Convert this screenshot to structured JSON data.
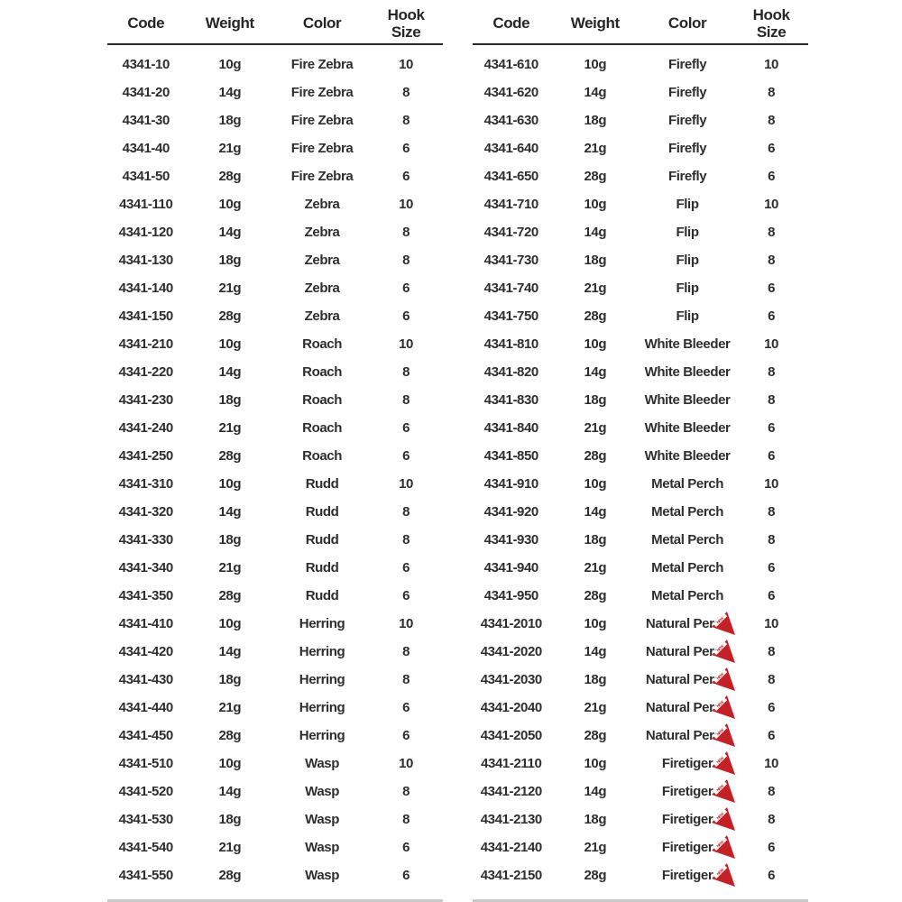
{
  "badge": {
    "label": "NEW",
    "color": "#c42127"
  },
  "tables": [
    {
      "headers": {
        "code": "Code",
        "weight": "Weight",
        "color": "Color",
        "hook": "Hook Size"
      },
      "rows": [
        {
          "code": "4341-10",
          "weight": "10g",
          "color": "Fire Zebra",
          "hook": "10",
          "new": false
        },
        {
          "code": "4341-20",
          "weight": "14g",
          "color": "Fire Zebra",
          "hook": "8",
          "new": false
        },
        {
          "code": "4341-30",
          "weight": "18g",
          "color": "Fire Zebra",
          "hook": "8",
          "new": false
        },
        {
          "code": "4341-40",
          "weight": "21g",
          "color": "Fire Zebra",
          "hook": "6",
          "new": false
        },
        {
          "code": "4341-50",
          "weight": "28g",
          "color": "Fire Zebra",
          "hook": "6",
          "new": false
        },
        {
          "code": "4341-110",
          "weight": "10g",
          "color": "Zebra",
          "hook": "10",
          "new": false
        },
        {
          "code": "4341-120",
          "weight": "14g",
          "color": "Zebra",
          "hook": "8",
          "new": false
        },
        {
          "code": "4341-130",
          "weight": "18g",
          "color": "Zebra",
          "hook": "8",
          "new": false
        },
        {
          "code": "4341-140",
          "weight": "21g",
          "color": "Zebra",
          "hook": "6",
          "new": false
        },
        {
          "code": "4341-150",
          "weight": "28g",
          "color": "Zebra",
          "hook": "6",
          "new": false
        },
        {
          "code": "4341-210",
          "weight": "10g",
          "color": "Roach",
          "hook": "10",
          "new": false
        },
        {
          "code": "4341-220",
          "weight": "14g",
          "color": "Roach",
          "hook": "8",
          "new": false
        },
        {
          "code": "4341-230",
          "weight": "18g",
          "color": "Roach",
          "hook": "8",
          "new": false
        },
        {
          "code": "4341-240",
          "weight": "21g",
          "color": "Roach",
          "hook": "6",
          "new": false
        },
        {
          "code": "4341-250",
          "weight": "28g",
          "color": "Roach",
          "hook": "6",
          "new": false
        },
        {
          "code": "4341-310",
          "weight": "10g",
          "color": "Rudd",
          "hook": "10",
          "new": false
        },
        {
          "code": "4341-320",
          "weight": "14g",
          "color": "Rudd",
          "hook": "8",
          "new": false
        },
        {
          "code": "4341-330",
          "weight": "18g",
          "color": "Rudd",
          "hook": "8",
          "new": false
        },
        {
          "code": "4341-340",
          "weight": "21g",
          "color": "Rudd",
          "hook": "6",
          "new": false
        },
        {
          "code": "4341-350",
          "weight": "28g",
          "color": "Rudd",
          "hook": "6",
          "new": false
        },
        {
          "code": "4341-410",
          "weight": "10g",
          "color": "Herring",
          "hook": "10",
          "new": false
        },
        {
          "code": "4341-420",
          "weight": "14g",
          "color": "Herring",
          "hook": "8",
          "new": false
        },
        {
          "code": "4341-430",
          "weight": "18g",
          "color": "Herring",
          "hook": "8",
          "new": false
        },
        {
          "code": "4341-440",
          "weight": "21g",
          "color": "Herring",
          "hook": "6",
          "new": false
        },
        {
          "code": "4341-450",
          "weight": "28g",
          "color": "Herring",
          "hook": "6",
          "new": false
        },
        {
          "code": "4341-510",
          "weight": "10g",
          "color": "Wasp",
          "hook": "10",
          "new": false
        },
        {
          "code": "4341-520",
          "weight": "14g",
          "color": "Wasp",
          "hook": "8",
          "new": false
        },
        {
          "code": "4341-530",
          "weight": "18g",
          "color": "Wasp",
          "hook": "8",
          "new": false
        },
        {
          "code": "4341-540",
          "weight": "21g",
          "color": "Wasp",
          "hook": "6",
          "new": false
        },
        {
          "code": "4341-550",
          "weight": "28g",
          "color": "Wasp",
          "hook": "6",
          "new": false
        }
      ]
    },
    {
      "headers": {
        "code": "Code",
        "weight": "Weight",
        "color": "Color",
        "hook": "Hook Size"
      },
      "rows": [
        {
          "code": "4341-610",
          "weight": "10g",
          "color": "Firefly",
          "hook": "10",
          "new": false
        },
        {
          "code": "4341-620",
          "weight": "14g",
          "color": "Firefly",
          "hook": "8",
          "new": false
        },
        {
          "code": "4341-630",
          "weight": "18g",
          "color": "Firefly",
          "hook": "8",
          "new": false
        },
        {
          "code": "4341-640",
          "weight": "21g",
          "color": "Firefly",
          "hook": "6",
          "new": false
        },
        {
          "code": "4341-650",
          "weight": "28g",
          "color": "Firefly",
          "hook": "6",
          "new": false
        },
        {
          "code": "4341-710",
          "weight": "10g",
          "color": "Flip",
          "hook": "10",
          "new": false
        },
        {
          "code": "4341-720",
          "weight": "14g",
          "color": "Flip",
          "hook": "8",
          "new": false
        },
        {
          "code": "4341-730",
          "weight": "18g",
          "color": "Flip",
          "hook": "8",
          "new": false
        },
        {
          "code": "4341-740",
          "weight": "21g",
          "color": "Flip",
          "hook": "6",
          "new": false
        },
        {
          "code": "4341-750",
          "weight": "28g",
          "color": "Flip",
          "hook": "6",
          "new": false
        },
        {
          "code": "4341-810",
          "weight": "10g",
          "color": "White Bleeder",
          "hook": "10",
          "new": false
        },
        {
          "code": "4341-820",
          "weight": "14g",
          "color": "White Bleeder",
          "hook": "8",
          "new": false
        },
        {
          "code": "4341-830",
          "weight": "18g",
          "color": "White Bleeder",
          "hook": "8",
          "new": false
        },
        {
          "code": "4341-840",
          "weight": "21g",
          "color": "White Bleeder",
          "hook": "6",
          "new": false
        },
        {
          "code": "4341-850",
          "weight": "28g",
          "color": "White Bleeder",
          "hook": "6",
          "new": false
        },
        {
          "code": "4341-910",
          "weight": "10g",
          "color": "Metal Perch",
          "hook": "10",
          "new": false
        },
        {
          "code": "4341-920",
          "weight": "14g",
          "color": "Metal Perch",
          "hook": "8",
          "new": false
        },
        {
          "code": "4341-930",
          "weight": "18g",
          "color": "Metal Perch",
          "hook": "8",
          "new": false
        },
        {
          "code": "4341-940",
          "weight": "21g",
          "color": "Metal Perch",
          "hook": "6",
          "new": false
        },
        {
          "code": "4341-950",
          "weight": "28g",
          "color": "Metal Perch",
          "hook": "6",
          "new": false
        },
        {
          "code": "4341-2010",
          "weight": "10g",
          "color": "Natural Perch",
          "hook": "10",
          "new": true
        },
        {
          "code": "4341-2020",
          "weight": "14g",
          "color": "Natural Perch",
          "hook": "8",
          "new": true
        },
        {
          "code": "4341-2030",
          "weight": "18g",
          "color": "Natural Perch",
          "hook": "8",
          "new": true
        },
        {
          "code": "4341-2040",
          "weight": "21g",
          "color": "Natural Perch",
          "hook": "6",
          "new": true
        },
        {
          "code": "4341-2050",
          "weight": "28g",
          "color": "Natural Perch",
          "hook": "6",
          "new": true
        },
        {
          "code": "4341-2110",
          "weight": "10g",
          "color": "Firetiger",
          "hook": "10",
          "new": true
        },
        {
          "code": "4341-2120",
          "weight": "14g",
          "color": "Firetiger",
          "hook": "8",
          "new": true
        },
        {
          "code": "4341-2130",
          "weight": "18g",
          "color": "Firetiger",
          "hook": "8",
          "new": true
        },
        {
          "code": "4341-2140",
          "weight": "21g",
          "color": "Firetiger",
          "hook": "6",
          "new": true
        },
        {
          "code": "4341-2150",
          "weight": "28g",
          "color": "Firetiger",
          "hook": "6",
          "new": true
        }
      ]
    }
  ]
}
